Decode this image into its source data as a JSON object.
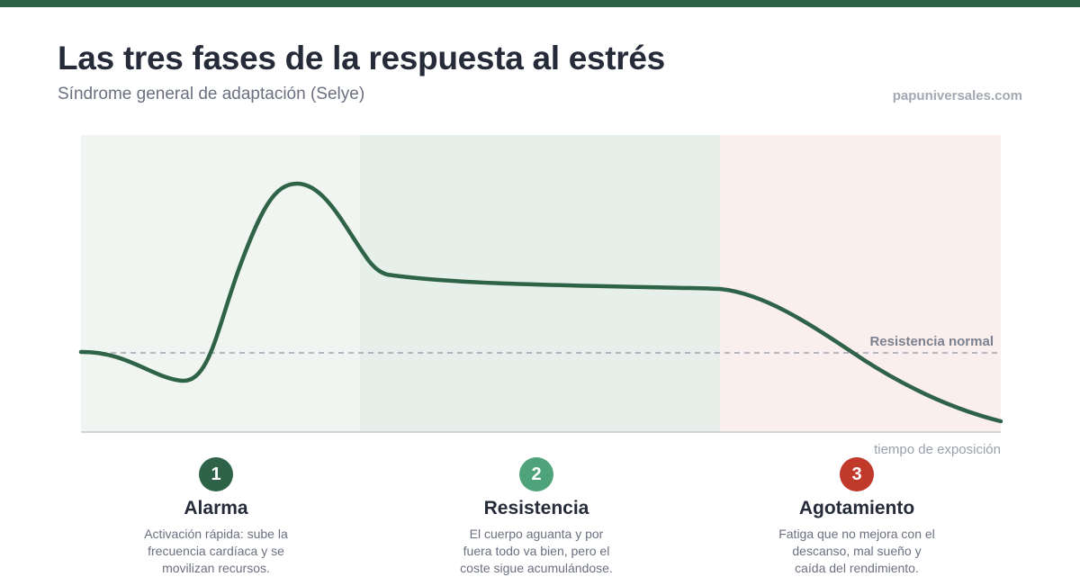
{
  "header": {
    "title": "Las tres fases de la respuesta al estrés",
    "subtitle": "Síndrome general de adaptación (Selye)",
    "source": "papuniversales.com"
  },
  "diagram": {
    "reference_label": "Resistencia normal",
    "x_axis_label": "tiempo de exposición",
    "colors": {
      "curve": "#2e6347",
      "zone_alarm": "#f0f5f1",
      "zone_resistance": "#e6efe9",
      "zone_exhaustion": "#fbefed",
      "reference_line": "#9ea3b5"
    }
  },
  "phases": [
    {
      "number": "1",
      "name": "Alarma",
      "description": "Activación rápida: sube la frecuencia cardíaca y se movilizan recursos.",
      "badge_color": "#2e6347"
    },
    {
      "number": "2",
      "name": "Resistencia",
      "description": "El cuerpo aguanta y por fuera todo va bien, pero el coste sigue acumulándose.",
      "badge_color": "#4fa37a"
    },
    {
      "number": "3",
      "name": "Agotamiento",
      "description": "Fatiga que no mejora con el descanso, mal sueño y caída del rendimiento.",
      "badge_color": "#c0392b"
    }
  ]
}
